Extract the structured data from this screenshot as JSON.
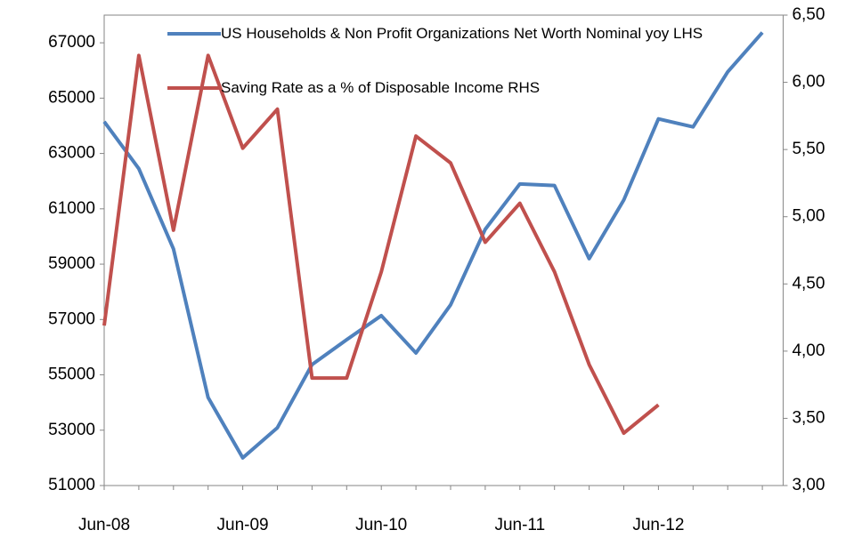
{
  "chart_data": {
    "type": "line",
    "categories": [
      "Jun-08",
      null,
      null,
      null,
      "Jun-09",
      null,
      null,
      null,
      "Jun-10",
      null,
      null,
      null,
      "Jun-11",
      null,
      null,
      null,
      "Jun-12",
      null,
      null,
      null
    ],
    "series": [
      {
        "name": "US Households & Non Profit Organizations Net Worth Nominal yoy LHS",
        "color": "#4f81bd",
        "values": [
          64150,
          62450,
          59550,
          54180,
          52000,
          53090,
          55370,
          56270,
          57140,
          55790,
          57530,
          60260,
          61900,
          61840,
          59200,
          61320,
          64250,
          63960,
          65950,
          67370
        ]
      },
      {
        "name": "Saving Rate as a % of Disposable Income RHS",
        "color": "#c0504d",
        "axis": "y2",
        "values": [
          4.19,
          6.2,
          4.9,
          6.2,
          5.51,
          5.8,
          3.8,
          3.8,
          4.59,
          5.6,
          5.4,
          4.81,
          5.1,
          4.59,
          3.9,
          3.39,
          3.6,
          null,
          null,
          null
        ]
      }
    ],
    "ylim": [
      51000,
      68000
    ],
    "yticks": [
      51000,
      53000,
      55000,
      57000,
      59000,
      61000,
      63000,
      65000,
      67000
    ],
    "y2lim": [
      3,
      6.5
    ],
    "y2ticks": [
      {
        "value": 3,
        "label": "3,00"
      },
      {
        "value": 3.5,
        "label": "3,50"
      },
      {
        "value": 4,
        "label": "4,00"
      },
      {
        "value": 4.5,
        "label": "4,50"
      },
      {
        "value": 5,
        "label": "5,00"
      },
      {
        "value": 5.5,
        "label": "5,50"
      },
      {
        "value": 6,
        "label": "6,00"
      },
      {
        "value": 6.5,
        "label": "6,50"
      }
    ],
    "grid": false
  }
}
